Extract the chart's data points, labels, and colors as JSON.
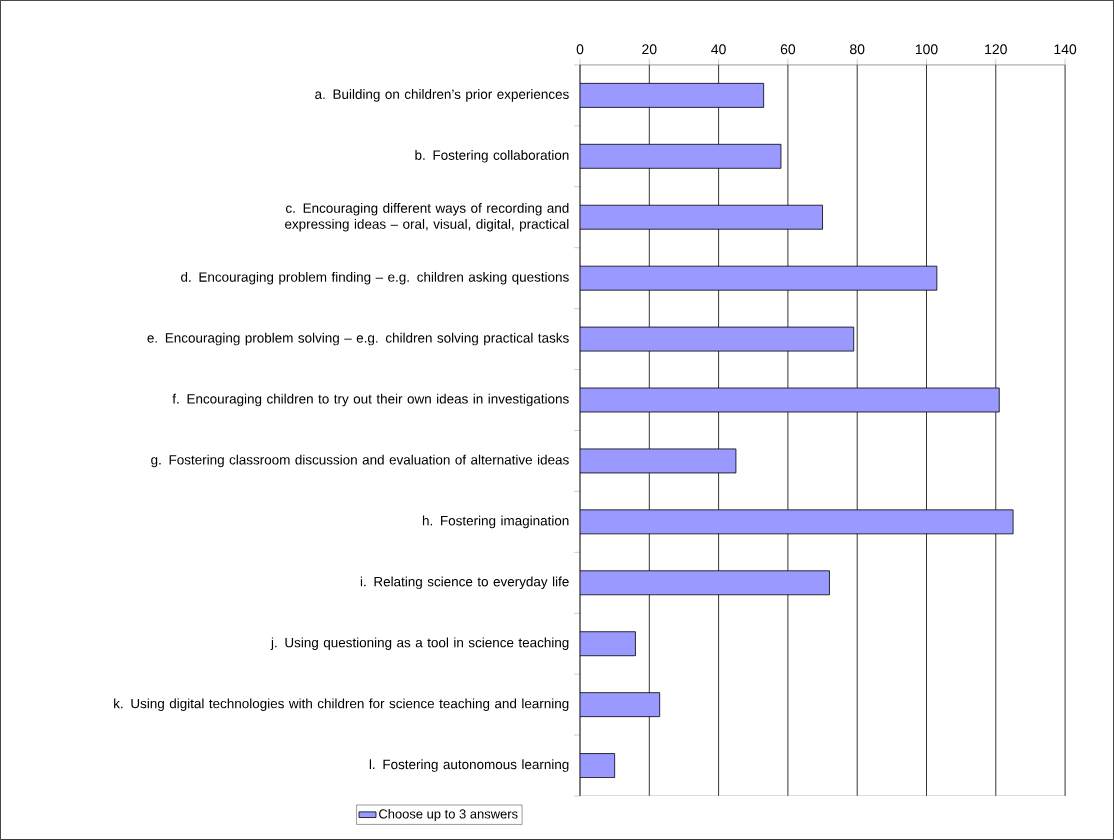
{
  "chart_data": {
    "type": "bar",
    "orientation": "horizontal",
    "categories": [
      "a. Building on children’s prior experiences",
      "b. Fostering collaboration",
      "c. Encouraging different ways of recording and expressing ideas – oral, visual, digital, practical",
      "d. Encouraging problem finding – e.g. children asking questions",
      "e. Encouraging problem solving – e.g. children solving practical tasks",
      "f. Encouraging children to try out their own ideas in investigations",
      "g. Fostering classroom discussion and evaluation of alternative ideas",
      "h. Fostering imagination",
      "i. Relating science to everyday life",
      "j. Using questioning as a tool in science teaching",
      "k. Using digital technologies with children for science teaching and learning",
      "l. Fostering autonomous learning"
    ],
    "series": [
      {
        "name": "Choose up to 3 answers",
        "color": "#9999ff",
        "values": [
          53,
          58,
          70,
          103,
          79,
          121,
          45,
          125,
          72,
          16,
          23,
          10
        ]
      }
    ],
    "xlim": [
      0,
      140
    ],
    "xticks": [
      0,
      20,
      40,
      60,
      80,
      100,
      120,
      140
    ],
    "grid": "x",
    "legend": "bottom"
  }
}
